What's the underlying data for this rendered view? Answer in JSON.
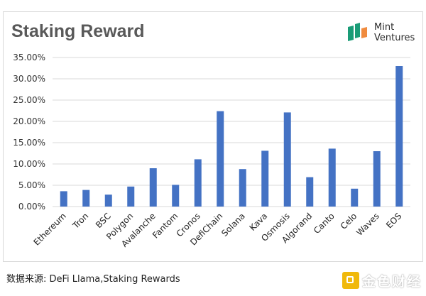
{
  "title": "Staking Reward",
  "logo": {
    "line1": "Mint",
    "line2": "Ventures",
    "icon": "mint-ventures-logo-icon"
  },
  "source": "数据来源: DeFi Llama,Staking Rewards",
  "watermark": "金色财经",
  "colors": {
    "bar": "#4472c4",
    "gridline": "#d9d9d9",
    "title": "#595959",
    "logo_green": "#1a9c77",
    "logo_orange": "#f08b3e"
  },
  "chart_data": {
    "type": "bar",
    "title": "Staking Reward",
    "xlabel": "",
    "ylabel": "",
    "categories": [
      "Ethereum",
      "Tron",
      "BSC",
      "Polygon",
      "Avalanche",
      "Fantom",
      "Cronos",
      "DefiChain",
      "Solana",
      "Kava",
      "Osmosis",
      "Algorand",
      "Canto",
      "Celo",
      "Waves",
      "EOS"
    ],
    "values": [
      3.6,
      3.9,
      2.8,
      4.7,
      9.0,
      5.1,
      11.1,
      22.4,
      8.8,
      13.1,
      22.1,
      6.9,
      13.6,
      4.2,
      13.0,
      33.0
    ],
    "ylim": [
      0,
      35
    ],
    "yticks": [
      0,
      5,
      10,
      15,
      20,
      25,
      30,
      35
    ],
    "ytick_labels": [
      "0.00%",
      "5.00%",
      "10.00%",
      "15.00%",
      "20.00%",
      "25.00%",
      "30.00%",
      "35.00%"
    ],
    "grid": true,
    "legend": "none"
  }
}
